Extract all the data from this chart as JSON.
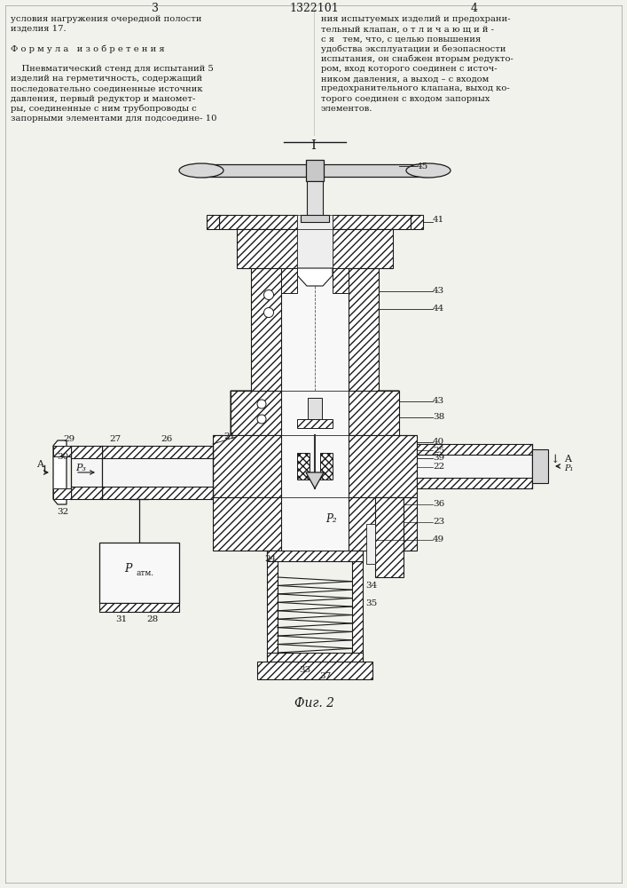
{
  "bg": "#f2f2ed",
  "lc": "#1a1a1a",
  "hc": "#2a2a2a",
  "fig_caption": "Фиг. 2",
  "header": [
    "3",
    "1322101",
    "4"
  ],
  "left_col": [
    "условия нагружения очередной полости",
    "изделия 17.",
    "",
    "Ф о р м у л а   и з о б р е т е н и я",
    "",
    "    Пневматический стенд для испытаний 5",
    "изделий на герметичность, содержащий",
    "последовательно соединенные источник",
    "давления, первый редуктор и маномет-",
    "ры, соединенные с ним трубопроводы с",
    "запорными элементами для подсоедине- 10"
  ],
  "right_col": [
    "ния испытуемых изделий и предохрани-",
    "тельный клапан, о т л и ч а ю щ и й -",
    "с я   тем, что, с целью повышения",
    "удобства эксплуатации и безопасности",
    "испытания, он снабжен вторым редукто-",
    "ром, вход которого соединен с источ-",
    "ником давления, а выход – с входом",
    "предохранительного клапана, выход ко-",
    "торого соединен с входом запорных",
    "элементов."
  ]
}
